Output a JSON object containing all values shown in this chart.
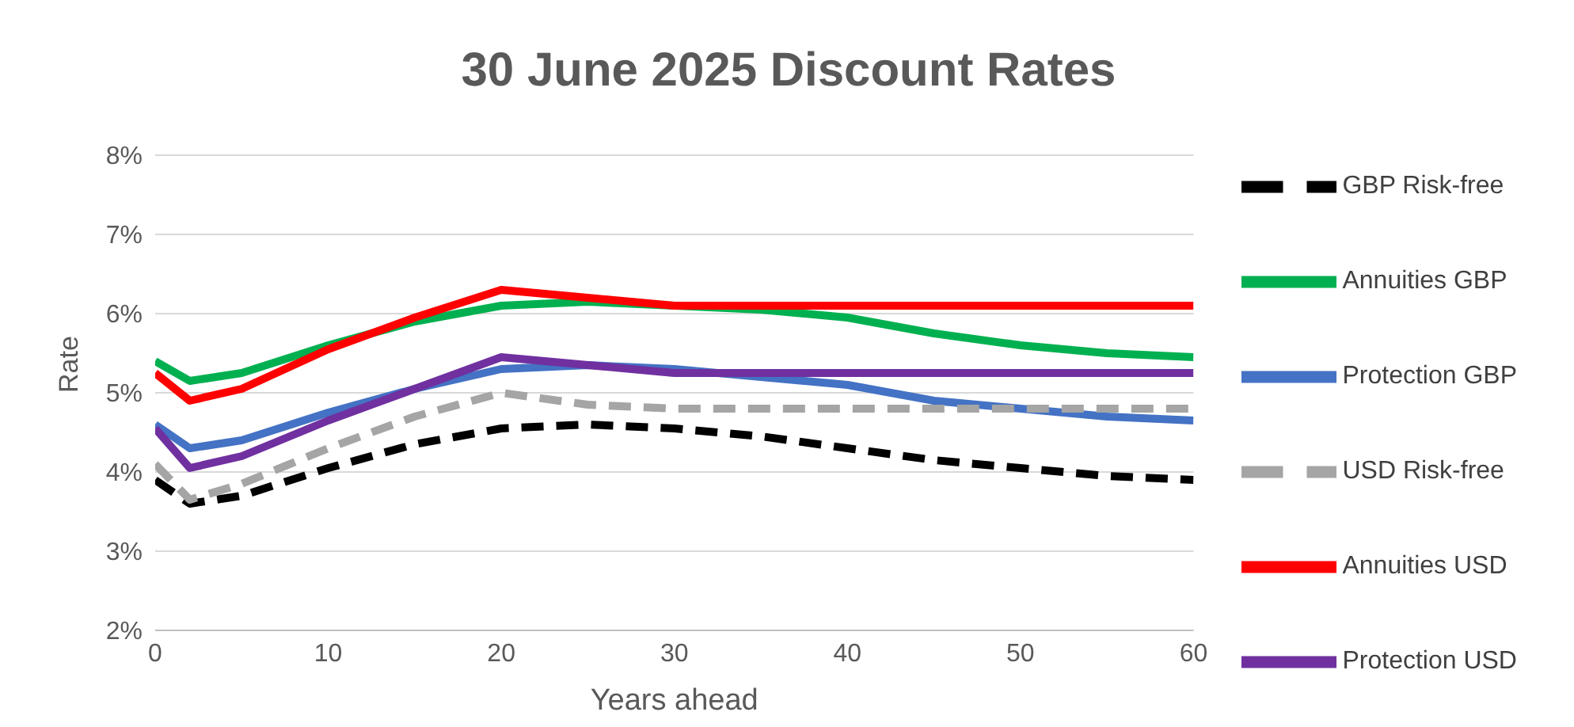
{
  "chart_data": {
    "type": "line",
    "title": "30 June 2025 Discount Rates",
    "xlabel": "Years ahead",
    "ylabel": "Rate",
    "x": [
      0,
      2,
      5,
      10,
      15,
      20,
      25,
      30,
      35,
      40,
      45,
      50,
      55,
      60
    ],
    "series": [
      {
        "name": "GBP Risk-free",
        "color": "#000000",
        "line_style": "dashed",
        "values": [
          3.9,
          3.6,
          3.7,
          4.05,
          4.35,
          4.55,
          4.6,
          4.55,
          4.45,
          4.3,
          4.15,
          4.05,
          3.95,
          3.9
        ]
      },
      {
        "name": "Annuities GBP",
        "color": "#00b050",
        "line_style": "solid",
        "values": [
          5.4,
          5.15,
          5.25,
          5.6,
          5.9,
          6.1,
          6.15,
          6.1,
          6.05,
          5.95,
          5.75,
          5.6,
          5.5,
          5.45
        ]
      },
      {
        "name": "Protection GBP",
        "color": "#4472c4",
        "line_style": "solid",
        "values": [
          4.6,
          4.3,
          4.4,
          4.75,
          5.05,
          5.3,
          5.35,
          5.3,
          5.2,
          5.1,
          4.9,
          4.8,
          4.7,
          4.65
        ]
      },
      {
        "name": "USD Risk-free",
        "color": "#a5a5a5",
        "line_style": "dashed",
        "values": [
          4.1,
          3.65,
          3.85,
          4.3,
          4.7,
          5.0,
          4.85,
          4.8,
          4.8,
          4.8,
          4.8,
          4.8,
          4.8,
          4.8
        ]
      },
      {
        "name": "Annuities USD",
        "color": "#ff0000",
        "line_style": "solid",
        "values": [
          5.25,
          4.9,
          5.05,
          5.55,
          5.95,
          6.3,
          6.2,
          6.1,
          6.1,
          6.1,
          6.1,
          6.1,
          6.1,
          6.1
        ]
      },
      {
        "name": "Protection USD",
        "color": "#7030a0",
        "line_style": "solid",
        "values": [
          4.55,
          4.05,
          4.2,
          4.65,
          5.05,
          5.45,
          5.35,
          5.25,
          5.25,
          5.25,
          5.25,
          5.25,
          5.25,
          5.25
        ]
      }
    ],
    "xlim": [
      0,
      60
    ],
    "xticks": [
      0,
      10,
      20,
      30,
      40,
      50,
      60
    ],
    "ylim": [
      2,
      8
    ],
    "yticks": [
      {
        "value": 2,
        "label": "2%"
      },
      {
        "value": 3,
        "label": "3%"
      },
      {
        "value": 4,
        "label": "4%"
      },
      {
        "value": 5,
        "label": "5%"
      },
      {
        "value": 6,
        "label": "6%"
      },
      {
        "value": 7,
        "label": "7%"
      },
      {
        "value": 8,
        "label": "8%"
      }
    ],
    "grid": "y",
    "legend": "right",
    "marker": "none"
  }
}
